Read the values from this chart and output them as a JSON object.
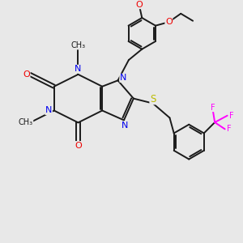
{
  "bg_color": "#e8e8e8",
  "bond_color": "#1a1a1a",
  "N_color": "#0000ee",
  "O_color": "#ee0000",
  "S_color": "#bbbb00",
  "F_color": "#ff00ff",
  "lw": 1.4,
  "fs": 7.5,
  "xlim": [
    0,
    10
  ],
  "ylim": [
    0,
    10
  ],
  "N1": [
    2.2,
    5.5
  ],
  "C2": [
    2.2,
    6.5
  ],
  "N3": [
    3.2,
    7.0
  ],
  "C4": [
    4.2,
    6.5
  ],
  "C5": [
    4.2,
    5.5
  ],
  "C6": [
    3.2,
    5.0
  ],
  "N7": [
    5.1,
    5.1
  ],
  "C8": [
    5.5,
    6.0
  ],
  "N9": [
    4.85,
    6.75
  ],
  "O2": [
    1.2,
    7.0
  ],
  "O6": [
    3.2,
    4.0
  ],
  "Me1": [
    1.2,
    5.0
  ],
  "Me3": [
    3.2,
    8.0
  ],
  "CH2A": [
    5.3,
    7.6
  ],
  "Benz1": [
    5.85,
    8.7
  ],
  "r1": 0.65,
  "angles1": [
    90,
    30,
    -30,
    -90,
    -150,
    150
  ],
  "O3_vert": 0,
  "O4_vert": 1,
  "S": [
    6.3,
    5.8
  ],
  "CH2B": [
    7.0,
    5.2
  ],
  "Benz2": [
    7.8,
    4.2
  ],
  "r2": 0.72,
  "angles2": [
    90,
    30,
    -30,
    -90,
    -150,
    150
  ],
  "CF3_attach_vert": 1
}
